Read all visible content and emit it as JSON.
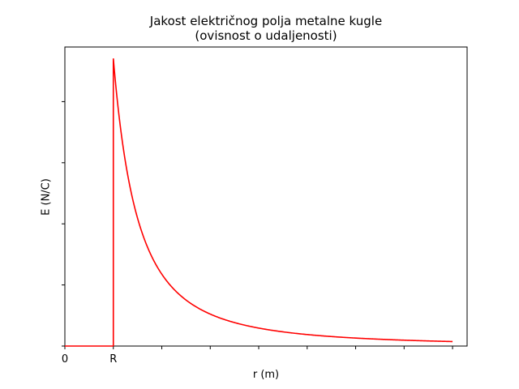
{
  "chart_data": {
    "type": "line",
    "title_line1": "Jakost električnog polja metalne kugle",
    "title_line2": "(ovisnost o udaljenosti)",
    "xlabel": "r (m)",
    "ylabel": "E (N/C)",
    "x_tick_labels": [
      {
        "x": 0,
        "label": "0"
      },
      {
        "x": 1,
        "label": "R"
      }
    ],
    "x_ticks_unlabeled": [
      2,
      3,
      4,
      5,
      6,
      7,
      8
    ],
    "y_ticks_unlabeled_count": 5,
    "xlim": [
      0,
      8.3
    ],
    "ylim": [
      0,
      1.04
    ],
    "grid": false,
    "color": "#ff0000",
    "series": [
      {
        "segments": [
          {
            "kind": "zero",
            "x": [
              0,
              1
            ],
            "y": [
              0,
              0
            ]
          },
          {
            "kind": "jump",
            "x": [
              1,
              1
            ],
            "y": [
              0,
              1
            ]
          },
          {
            "kind": "inverse_square",
            "formula": "E = (R/r)^2",
            "x_start": 1,
            "x_end": 8
          }
        ]
      }
    ]
  }
}
